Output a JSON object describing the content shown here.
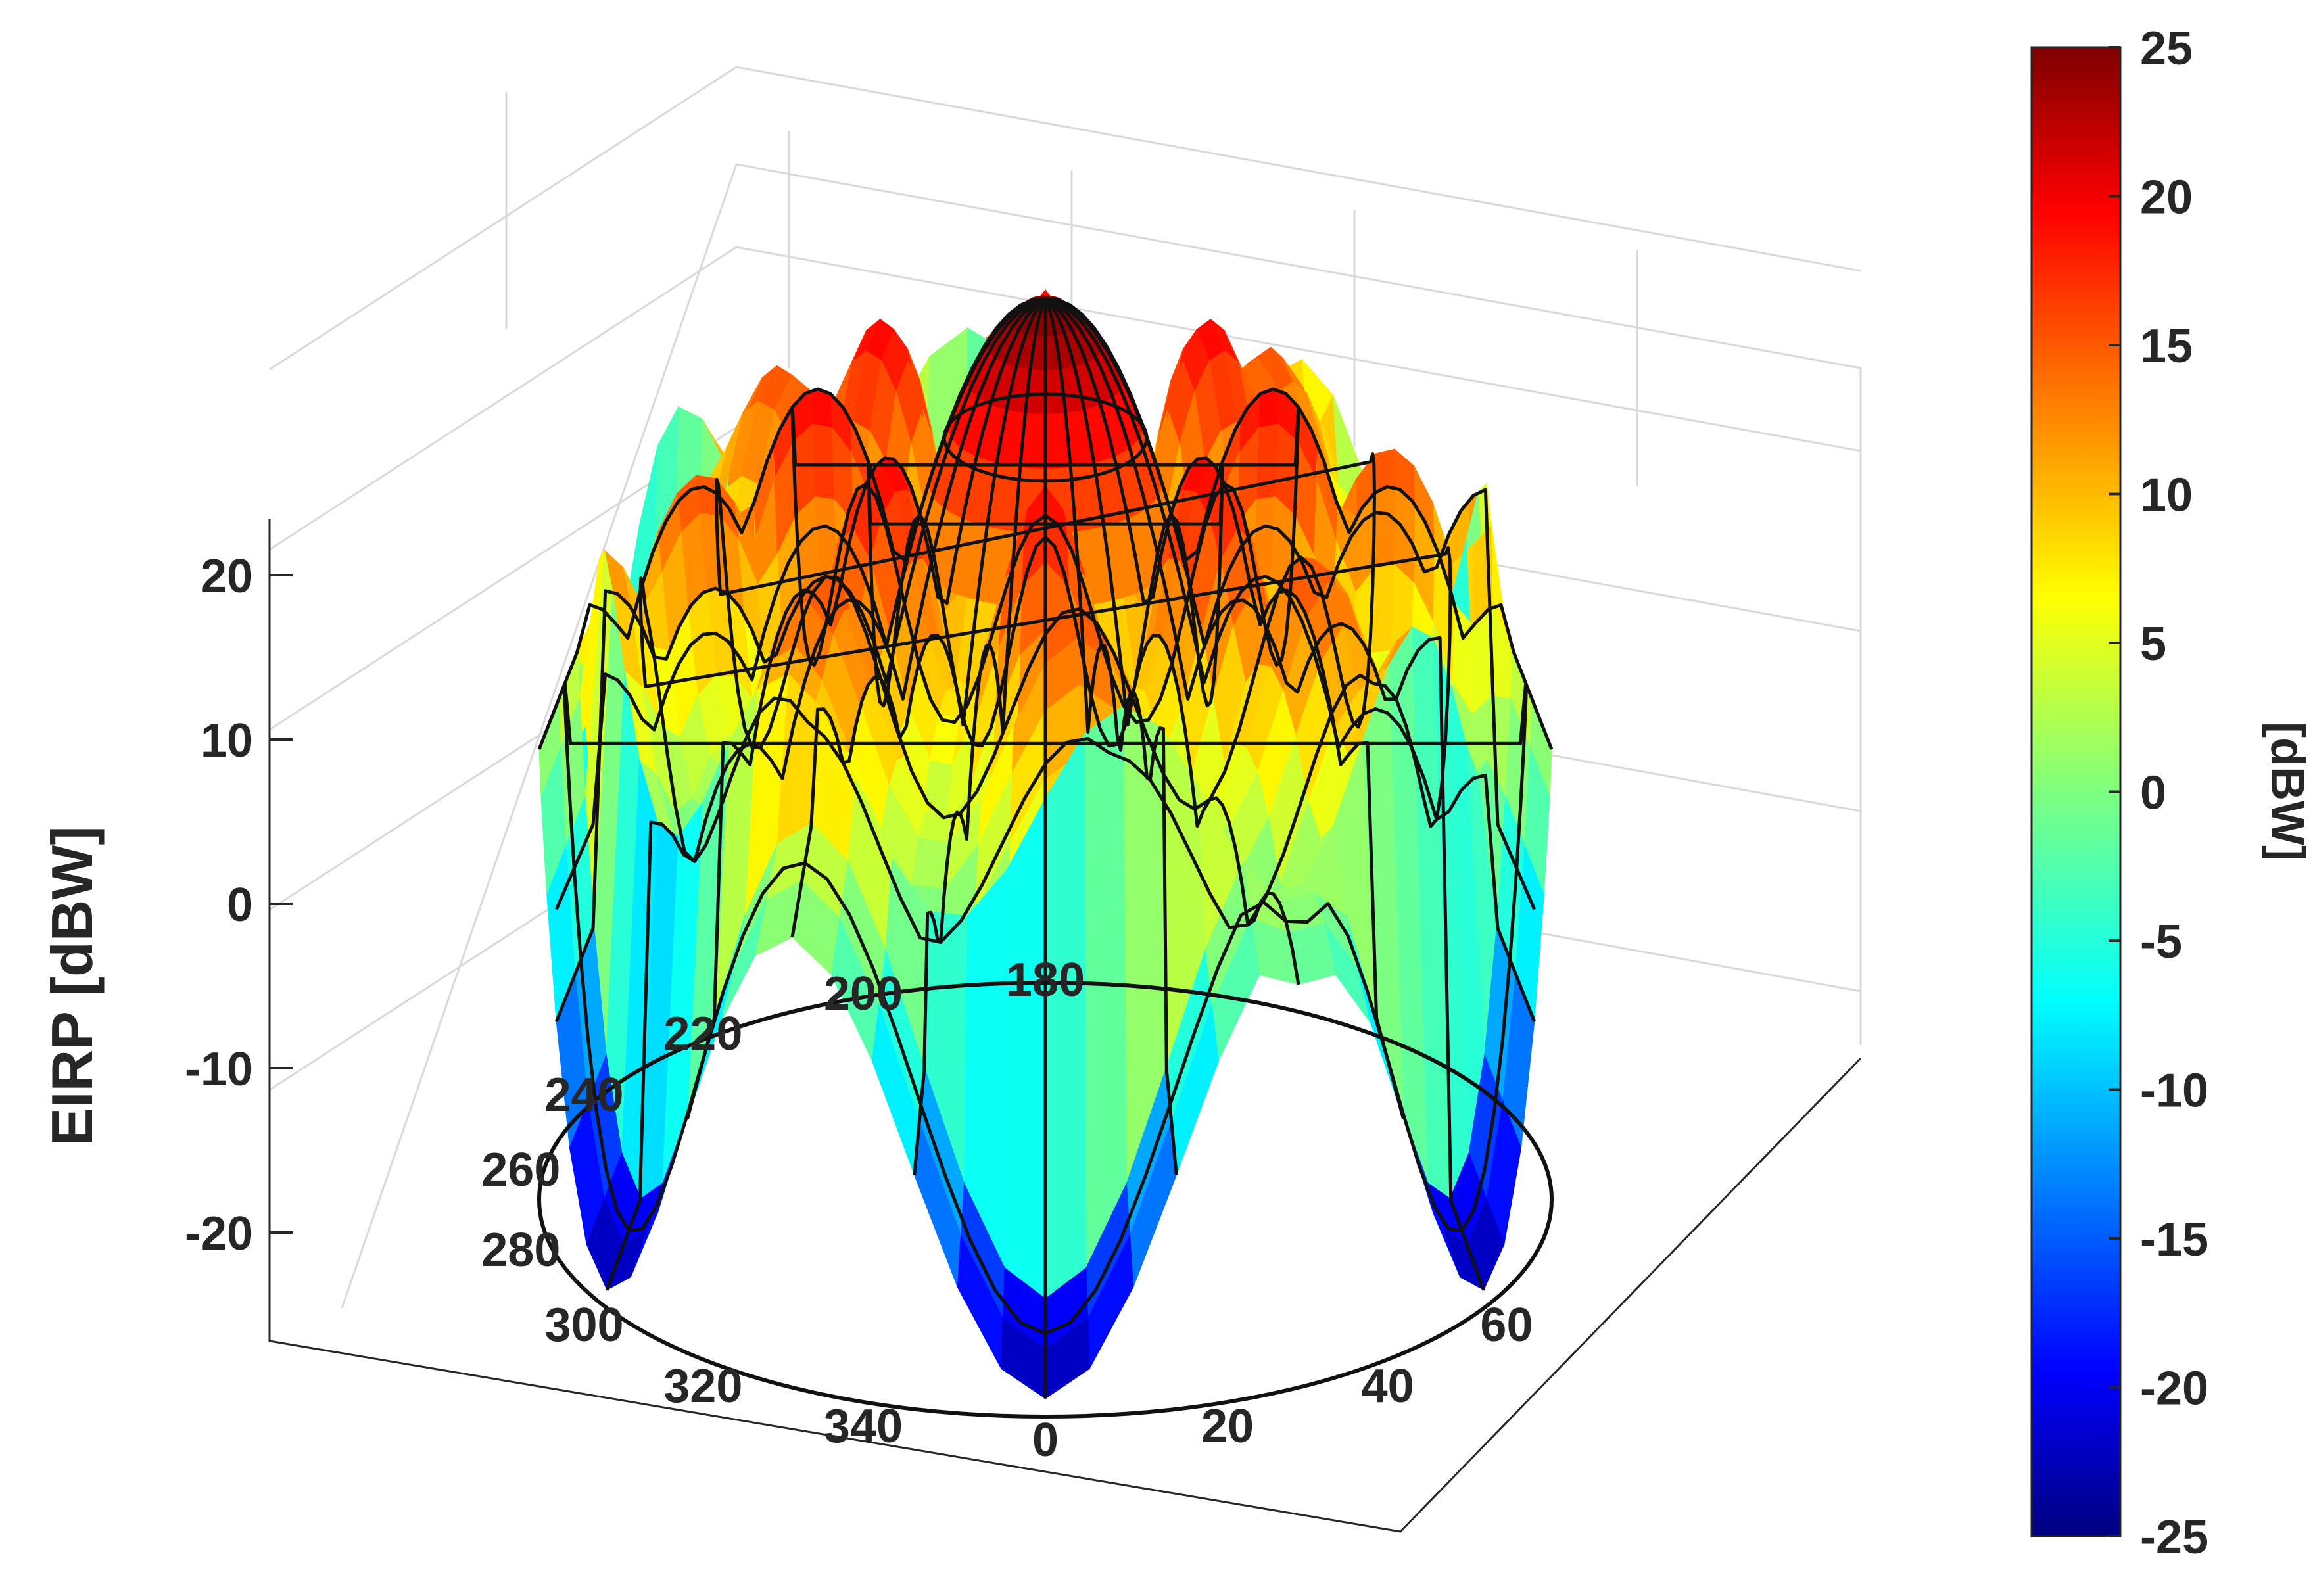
{
  "chart_data": {
    "type": "surface",
    "zlabel": "EIRP [dBW]",
    "zlim": [
      -25,
      25
    ],
    "z_ticks": [
      -20,
      -10,
      0,
      10,
      20
    ],
    "angle_ticks": [
      {
        "value": 0,
        "label": "0"
      },
      {
        "value": 20,
        "label": "20"
      },
      {
        "value": 40,
        "label": "40"
      },
      {
        "value": 60,
        "label": "60"
      },
      {
        "value": 180,
        "label": "180"
      },
      {
        "value": 200,
        "label": "200"
      },
      {
        "value": 220,
        "label": "220"
      },
      {
        "value": 240,
        "label": "240"
      },
      {
        "value": 260,
        "label": "260"
      },
      {
        "value": 280,
        "label": "280"
      },
      {
        "value": 300,
        "label": "300"
      },
      {
        "value": 320,
        "label": "320"
      },
      {
        "value": 340,
        "label": "340"
      }
    ],
    "surface": {
      "main_lobe_peak_dBW": 25,
      "main_lobe_radius": 0.26,
      "outer_edge_level_dBW": 0,
      "side_lobe_ring_levels_dBW": [
        14,
        10,
        7
      ],
      "min_level_dBW": -24
    },
    "colorbar": {
      "colormap": "jet",
      "label": "[dBW]",
      "range": [
        -25,
        25
      ],
      "ticks": [
        25,
        20,
        15,
        10,
        5,
        0,
        -5,
        -10,
        -15,
        -20,
        -25
      ]
    },
    "grid": true
  }
}
